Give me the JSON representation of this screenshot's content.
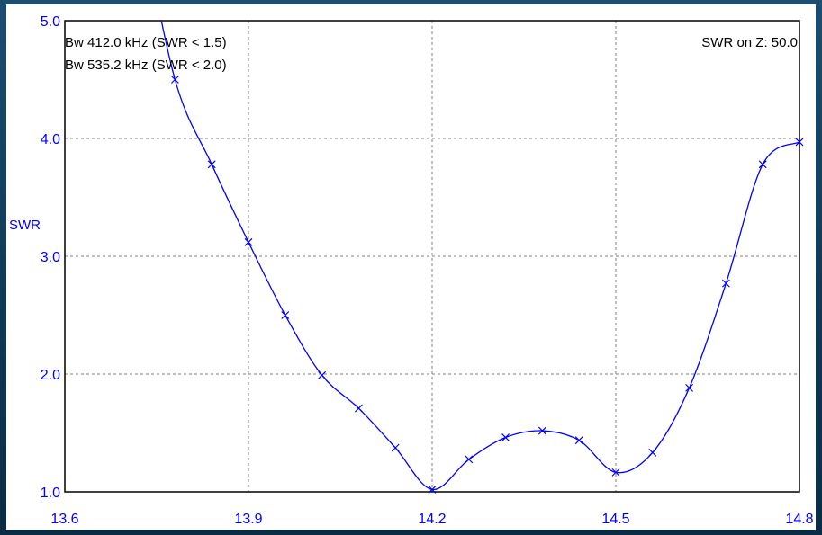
{
  "colors": {
    "series": "#0000ff",
    "axis_text": "#0000ff",
    "annotation_text": "#000000",
    "grid": "#808080",
    "frame": "#0d3550",
    "plot_bg": "#ffffff"
  },
  "chart_data": {
    "type": "line",
    "title": "",
    "xlabel": "",
    "ylabel": "SWR",
    "xlim": [
      13.6,
      14.8
    ],
    "ylim": [
      1.0,
      5.0
    ],
    "y_scale": "swr",
    "x_ticks": [
      "13.6",
      "13.9",
      "14.2",
      "14.5",
      "14.8"
    ],
    "x_tick_values": [
      13.6,
      13.9,
      14.2,
      14.5,
      14.8
    ],
    "y_ticks": [
      "1.0",
      "2.0",
      "3.0",
      "4.0",
      "5.0"
    ],
    "y_tick_values": [
      1.0,
      2.0,
      3.0,
      4.0,
      5.0
    ],
    "grid": true,
    "annotations": {
      "bw1": "Bw 412.0 kHz (SWR < 1.5)",
      "bw2": "Bw 535.2 kHz (SWR < 2.0)",
      "ref": "SWR on Z: 50.0"
    },
    "series": [
      {
        "marker": "x",
        "x": [
          13.72,
          13.78,
          13.84,
          13.9,
          13.96,
          14.02,
          14.08,
          14.14,
          14.2,
          14.26,
          14.32,
          14.38,
          14.44,
          14.5,
          14.56,
          14.62,
          14.68,
          14.74,
          14.8
        ],
        "y": [
          6.0,
          4.5,
          3.78,
          3.12,
          2.5,
          1.98,
          1.55,
          1.23,
          1.01,
          1.16,
          1.3,
          1.35,
          1.28,
          1.09,
          1.2,
          1.79,
          2.77,
          3.78,
          3.97
        ]
      }
    ]
  }
}
